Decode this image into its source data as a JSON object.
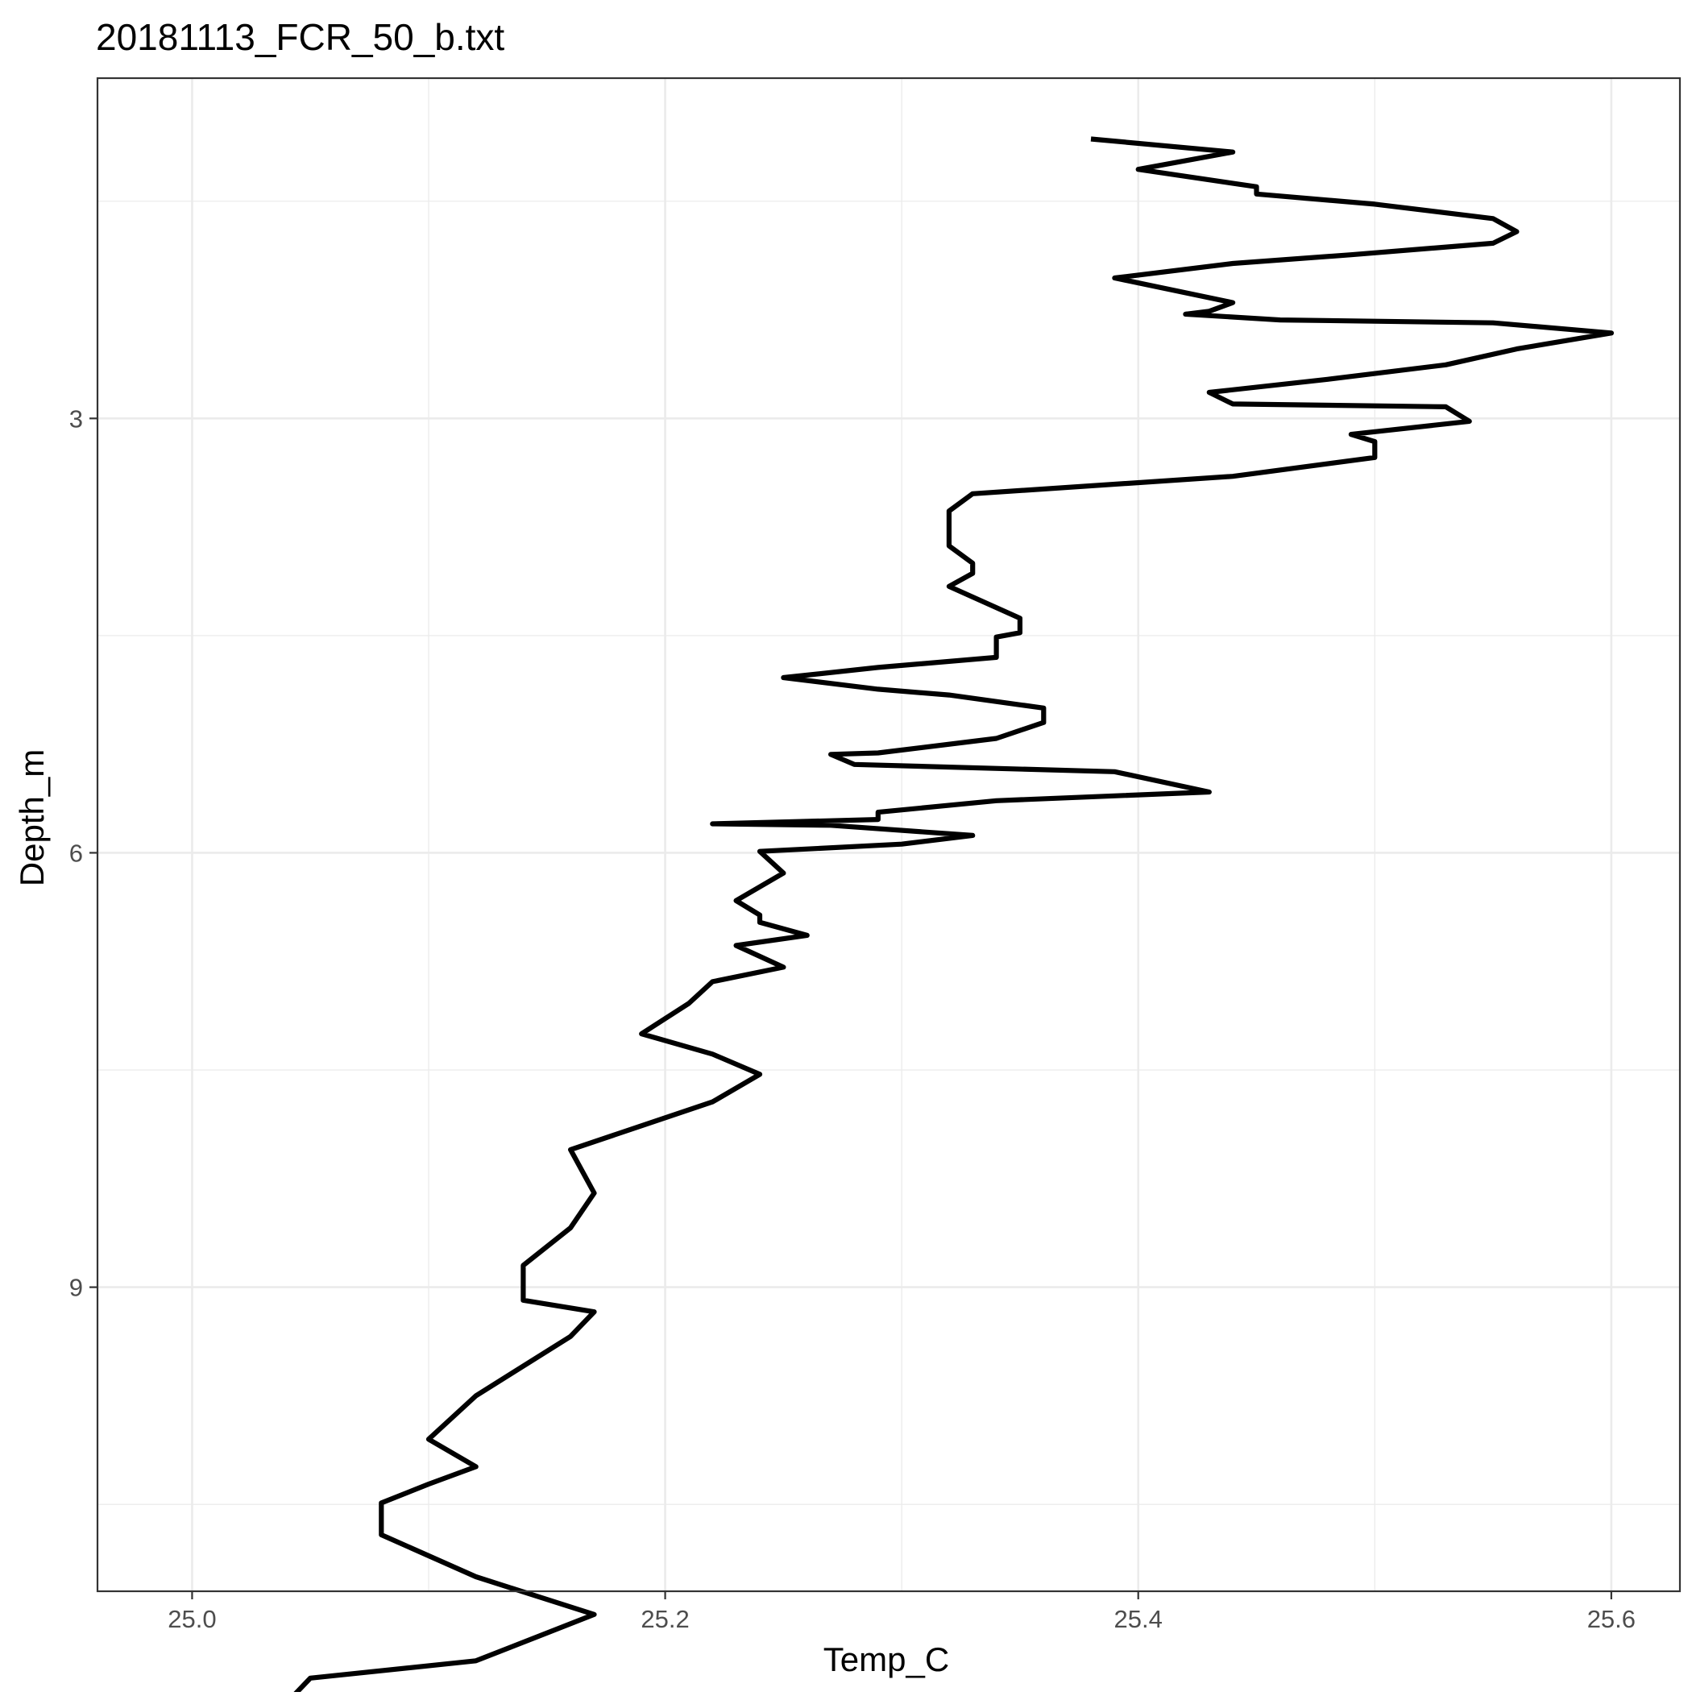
{
  "chart_data": {
    "type": "line",
    "title": "20181113_FCR_50_b.txt",
    "xlabel": "Temp_C",
    "ylabel": "Depth_m",
    "xlim": [
      24.96,
      25.629
    ],
    "ylim": [
      0.65,
      11.1
    ],
    "y_reversed": true,
    "x_ticks": [
      25.0,
      25.2,
      25.4,
      25.6
    ],
    "x_tick_labels": [
      "25.0",
      "25.2",
      "25.4",
      "25.6"
    ],
    "x_minor_ticks": [
      25.1,
      25.3,
      25.5
    ],
    "y_ticks": [
      3,
      6,
      9
    ],
    "y_tick_labels": [
      "3",
      "6",
      "9"
    ],
    "y_minor_ticks": [
      1.5,
      4.5,
      7.5,
      10.5
    ],
    "grid": true,
    "legend": "none",
    "line_color": "#000000",
    "series": [
      {
        "x": [
          25.38,
          25.44,
          25.4,
          25.45,
          25.45,
          25.5,
          25.55,
          25.56,
          25.55,
          25.49,
          25.44,
          25.39,
          25.44,
          25.43,
          25.42,
          25.46,
          25.55,
          25.6,
          25.56,
          25.53,
          25.48,
          25.43,
          25.44,
          25.53,
          25.54,
          25.49,
          25.5,
          25.5,
          25.44,
          25.33,
          25.32,
          25.32,
          25.33,
          25.33,
          25.32,
          25.35,
          25.35,
          25.34,
          25.34,
          25.29,
          25.25,
          25.29,
          25.32,
          25.36,
          25.36,
          25.34,
          25.29,
          25.27,
          25.28,
          25.39,
          25.43,
          25.34,
          25.29,
          25.29,
          25.22,
          25.27,
          25.33,
          25.3,
          25.24,
          25.25,
          25.23,
          25.24,
          25.24,
          25.26,
          25.23,
          25.25,
          25.22,
          25.21,
          25.19,
          25.22,
          25.24,
          25.22,
          25.16,
          25.17,
          25.16,
          25.14,
          25.14,
          25.17,
          25.16,
          25.12,
          25.1,
          25.12,
          25.1,
          25.08,
          25.08,
          25.12,
          25.17,
          25.12,
          25.05,
          25.04,
          25.04,
          25.05,
          25.04,
          24.99
        ],
        "y": [
          1.07,
          1.16,
          1.28,
          1.4,
          1.45,
          1.52,
          1.62,
          1.71,
          1.79,
          1.87,
          1.93,
          2.03,
          2.2,
          2.26,
          2.28,
          2.32,
          2.34,
          2.41,
          2.52,
          2.63,
          2.73,
          2.82,
          2.9,
          2.92,
          3.02,
          3.11,
          3.16,
          3.27,
          3.4,
          3.52,
          3.64,
          3.88,
          4.0,
          4.07,
          4.16,
          4.38,
          4.48,
          4.51,
          4.65,
          4.72,
          4.79,
          4.87,
          4.91,
          5.0,
          5.1,
          5.21,
          5.31,
          5.32,
          5.39,
          5.44,
          5.58,
          5.64,
          5.72,
          5.77,
          5.8,
          5.81,
          5.88,
          5.94,
          5.99,
          6.14,
          6.33,
          6.43,
          6.48,
          6.57,
          6.64,
          6.79,
          6.89,
          7.04,
          7.25,
          7.39,
          7.53,
          7.72,
          8.05,
          8.35,
          8.59,
          8.85,
          9.09,
          9.17,
          9.34,
          9.75,
          10.05,
          10.24,
          10.36,
          10.49,
          10.71,
          11.0,
          11.26,
          11.58,
          11.7,
          11.87,
          12.02,
          12.12,
          12.28,
          12.36
        ]
      }
    ]
  }
}
